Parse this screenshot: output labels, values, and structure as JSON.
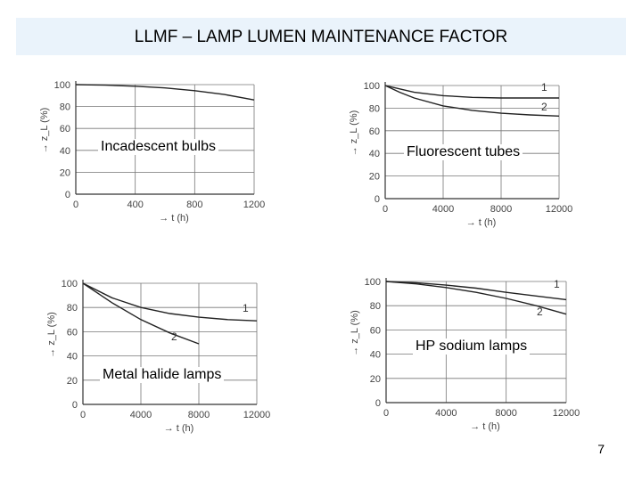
{
  "slide": {
    "title": "LLMF – LAMP LUMEN MAINTENANCE FACTOR",
    "page_number": "7"
  },
  "chart_data": [
    {
      "type": "line",
      "title": "Incadescent bulbs",
      "xlabel": "t (h)",
      "ylabel": "z_L (%)",
      "xlim": [
        0,
        1200
      ],
      "ylim": [
        0,
        100
      ],
      "xticks": [
        0,
        400,
        800,
        1200
      ],
      "yticks": [
        0,
        20,
        40,
        60,
        80,
        100
      ],
      "grid": true,
      "series": [
        {
          "name": "",
          "x": [
            0,
            200,
            400,
            600,
            800,
            1000,
            1200
          ],
          "y": [
            100,
            99.5,
            98.5,
            97,
            94.5,
            91,
            86
          ]
        }
      ]
    },
    {
      "type": "line",
      "title": "Fluorescent tubes",
      "xlabel": "t (h)",
      "ylabel": "z_L (%)",
      "xlim": [
        0,
        12000
      ],
      "ylim": [
        0,
        100
      ],
      "xticks": [
        0,
        4000,
        8000,
        12000
      ],
      "yticks": [
        0,
        20,
        40,
        60,
        80,
        100
      ],
      "grid": true,
      "series": [
        {
          "name": "1",
          "x": [
            0,
            1000,
            2000,
            4000,
            6000,
            8000,
            10000,
            12000
          ],
          "y": [
            100,
            97,
            94,
            91,
            89.5,
            89,
            89,
            89
          ]
        },
        {
          "name": "2",
          "x": [
            0,
            1000,
            2000,
            4000,
            6000,
            8000,
            10000,
            12000
          ],
          "y": [
            100,
            94,
            89,
            82,
            78,
            75.5,
            74,
            73
          ]
        }
      ]
    },
    {
      "type": "line",
      "title": "Metal halide lamps",
      "xlabel": "t (h)",
      "ylabel": "z_L (%)",
      "xlim": [
        0,
        12000
      ],
      "ylim": [
        0,
        100
      ],
      "xticks": [
        0,
        4000,
        8000,
        12000
      ],
      "yticks": [
        0,
        20,
        40,
        60,
        80,
        100
      ],
      "grid": true,
      "series": [
        {
          "name": "1",
          "x": [
            0,
            2000,
            4000,
            6000,
            8000,
            10000,
            12000
          ],
          "y": [
            100,
            88,
            80,
            75,
            72,
            70,
            69
          ]
        },
        {
          "name": "2",
          "x": [
            0,
            1000,
            2000,
            4000,
            6000,
            8000
          ],
          "y": [
            100,
            92,
            84,
            70,
            59,
            50
          ]
        }
      ]
    },
    {
      "type": "line",
      "title": "HP sodium lamps",
      "xlabel": "t (h)",
      "ylabel": "z_L (%)",
      "xlim": [
        0,
        12000
      ],
      "ylim": [
        0,
        100
      ],
      "xticks": [
        0,
        4000,
        8000,
        12000
      ],
      "yticks": [
        0,
        20,
        40,
        60,
        80,
        100
      ],
      "grid": true,
      "series": [
        {
          "name": "1",
          "x": [
            0,
            2000,
            4000,
            6000,
            8000,
            10000,
            12000
          ],
          "y": [
            100,
            99,
            97,
            94.5,
            91,
            88,
            85
          ]
        },
        {
          "name": "2",
          "x": [
            0,
            2000,
            4000,
            6000,
            8000,
            10000,
            12000
          ],
          "y": [
            100,
            98,
            95,
            91,
            86,
            80,
            73
          ]
        }
      ]
    }
  ]
}
